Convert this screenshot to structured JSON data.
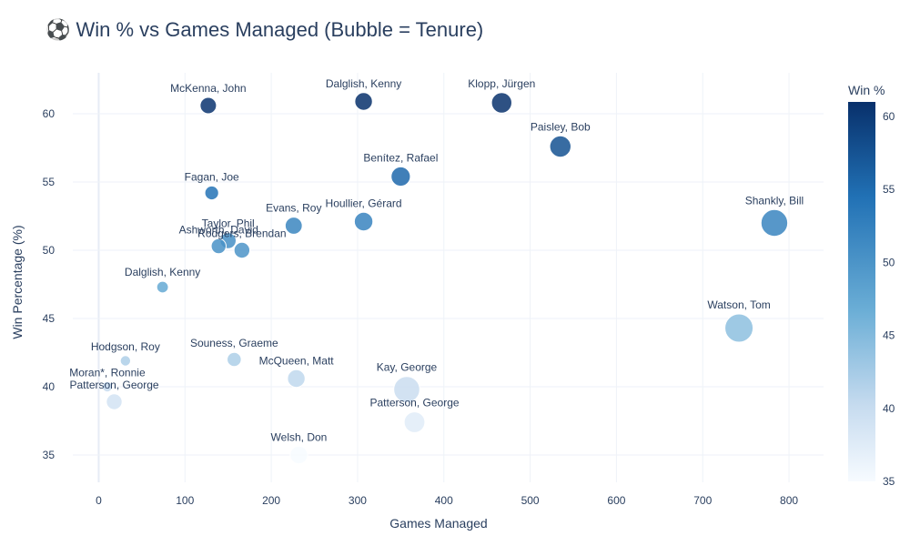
{
  "chart_data": {
    "type": "scatter",
    "title": "⚽ Win % vs Games Managed (Bubble = Tenure)",
    "xlabel": "Games Managed",
    "ylabel": "Win Percentage (%)",
    "xlim": [
      -30,
      840
    ],
    "ylim": [
      33,
      63
    ],
    "xticks": [
      0,
      100,
      200,
      300,
      400,
      500,
      600,
      700,
      800
    ],
    "yticks": [
      35,
      40,
      45,
      50,
      55,
      60
    ],
    "grid": true,
    "colorbar": {
      "title": "Win %",
      "min": 35,
      "max": 61,
      "ticks": [
        35,
        40,
        45,
        50,
        55,
        60
      ],
      "color_low": "#f7fbff",
      "color_high": "#08306b"
    },
    "points": [
      {
        "label": "McKenna, John",
        "x": 127,
        "y": 60.6,
        "size": 1.8
      },
      {
        "label": "Dalglish, Kenny",
        "x": 307,
        "y": 60.9,
        "size": 2.3
      },
      {
        "label": "Klopp, Jürgen",
        "x": 467,
        "y": 60.8,
        "size": 3.5
      },
      {
        "label": "Paisley, Bob",
        "x": 535,
        "y": 57.6,
        "size": 4.0
      },
      {
        "label": "Benítez, Rafael",
        "x": 350,
        "y": 55.4,
        "size": 3.0
      },
      {
        "label": "Fagan, Joe",
        "x": 131,
        "y": 54.2,
        "size": 1.0
      },
      {
        "label": "Evans, Roy",
        "x": 226,
        "y": 51.8,
        "size": 2.1
      },
      {
        "label": "Houllier, Gérard",
        "x": 307,
        "y": 52.1,
        "size": 2.7
      },
      {
        "label": "Shankly, Bill",
        "x": 783,
        "y": 52.0,
        "size": 7.5
      },
      {
        "label": "Taylor, Phil",
        "x": 150,
        "y": 50.7,
        "size": 1.7
      },
      {
        "label": "Ashworth, David",
        "x": 139,
        "y": 50.3,
        "size": 1.3
      },
      {
        "label": "Rodgers, Brendan",
        "x": 166,
        "y": 50.0,
        "size": 1.6
      },
      {
        "label": "Dalglish, Kenny",
        "x": 74,
        "y": 47.3,
        "size": 0.5
      },
      {
        "label": "Watson, Tom",
        "x": 742,
        "y": 44.3,
        "size": 8.5
      },
      {
        "label": "Hodgson, Roy",
        "x": 31,
        "y": 41.9,
        "size": 0.3
      },
      {
        "label": "Souness, Graeme",
        "x": 157,
        "y": 42.0,
        "size": 1.1
      },
      {
        "label": "McQueen, Matt",
        "x": 229,
        "y": 40.6,
        "size": 2.3
      },
      {
        "label": "Kay, George",
        "x": 357,
        "y": 39.8,
        "size": 7.0
      },
      {
        "label": "Moran*, Ronnie",
        "x": 10,
        "y": 40.0,
        "size": 0.3
      },
      {
        "label": "Patterson, George",
        "x": 18,
        "y": 38.9,
        "size": 1.6
      },
      {
        "label": "Patterson, George",
        "x": 366,
        "y": 37.4,
        "size": 3.7
      },
      {
        "label": "Welsh, Don",
        "x": 232,
        "y": 35.0,
        "size": 2.3
      }
    ]
  }
}
